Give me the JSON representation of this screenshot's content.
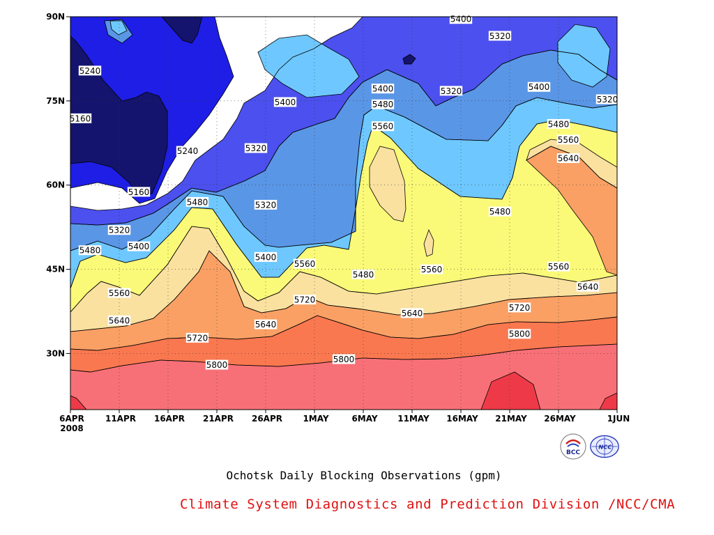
{
  "chart_data": {
    "type": "contour",
    "x_dates": [
      "6APR",
      "11APR",
      "16APR",
      "21APR",
      "26APR",
      "1MAY",
      "6MAY",
      "11MAY",
      "16MAY",
      "21MAY",
      "26MAY",
      "1JUN"
    ],
    "x_year": "2008",
    "y_ticks": [
      "30N",
      "45N",
      "60N",
      "75N",
      "90N"
    ],
    "ylim": [
      20,
      90
    ],
    "levels": [
      5160,
      5240,
      5320,
      5400,
      5480,
      5560,
      5640,
      5720,
      5800
    ],
    "contour_labels": [
      {
        "value": "5240",
        "date": "8APR",
        "lat": 80.4
      },
      {
        "value": "5160",
        "date": "7APR",
        "lat": 71.9
      },
      {
        "value": "5240",
        "date": "18APR",
        "lat": 66.1
      },
      {
        "value": "5160",
        "date": "13APR",
        "lat": 58.8
      },
      {
        "value": "5320",
        "date": "11APR",
        "lat": 52.0
      },
      {
        "value": "5400",
        "date": "13APR",
        "lat": 49.1
      },
      {
        "value": "5480",
        "date": "8APR",
        "lat": 48.4
      },
      {
        "value": "5480",
        "date": "19APR",
        "lat": 57.0
      },
      {
        "value": "5560",
        "date": "11APR",
        "lat": 40.8
      },
      {
        "value": "5640",
        "date": "11APR",
        "lat": 35.9
      },
      {
        "value": "5720",
        "date": "19APR",
        "lat": 32.8
      },
      {
        "value": "5800",
        "date": "21APR",
        "lat": 28.0
      },
      {
        "value": "5320",
        "date": "25APR",
        "lat": 66.6
      },
      {
        "value": "5320",
        "date": "26APR",
        "lat": 56.5
      },
      {
        "value": "5400",
        "date": "28APR",
        "lat": 74.8
      },
      {
        "value": "5400",
        "date": "26APR",
        "lat": 47.2
      },
      {
        "value": "5640",
        "date": "26APR",
        "lat": 35.2
      },
      {
        "value": "5560",
        "date": "30APR",
        "lat": 46.0
      },
      {
        "value": "5720",
        "date": "30APR",
        "lat": 39.6
      },
      {
        "value": "5800",
        "date": "4MAY",
        "lat": 29.0
      },
      {
        "value": "5480",
        "date": "6MAY",
        "lat": 44.1
      },
      {
        "value": "5400",
        "date": "8MAY",
        "lat": 77.2
      },
      {
        "value": "5480",
        "date": "8MAY",
        "lat": 74.4
      },
      {
        "value": "5560",
        "date": "8MAY",
        "lat": 70.5
      },
      {
        "value": "5320",
        "date": "15MAY",
        "lat": 76.8
      },
      {
        "value": "5400",
        "date": "16MAY",
        "lat": 89.6
      },
      {
        "value": "5320",
        "date": "20MAY",
        "lat": 86.6
      },
      {
        "value": "5560",
        "date": "13MAY",
        "lat": 45.0
      },
      {
        "value": "5640",
        "date": "11MAY",
        "lat": 37.2
      },
      {
        "value": "5480",
        "date": "20MAY",
        "lat": 55.3
      },
      {
        "value": "5720",
        "date": "22MAY",
        "lat": 38.2
      },
      {
        "value": "5800",
        "date": "22MAY",
        "lat": 33.5
      },
      {
        "value": "5400",
        "date": "24MAY",
        "lat": 77.5
      },
      {
        "value": "5480",
        "date": "26MAY",
        "lat": 70.9
      },
      {
        "value": "5560",
        "date": "27MAY",
        "lat": 68.1
      },
      {
        "value": "5640",
        "date": "27MAY",
        "lat": 64.8
      },
      {
        "value": "5560",
        "date": "26MAY",
        "lat": 45.5
      },
      {
        "value": "5640",
        "date": "29MAY",
        "lat": 41.9
      },
      {
        "value": "5320",
        "date": "31MAY",
        "lat": 75.3
      }
    ],
    "colors": {
      "lt5160": "#14146e",
      "5160": "#1e1ee6",
      "5240": "#4b50ee",
      "5320": "#5a96e6",
      "5400": "#6ec8ff",
      "5480": "#fafa78",
      "5560": "#fae1a0",
      "5640": "#faa064",
      "5720": "#fa7850",
      "5800": "#f87077",
      "gt5880": "#ee3a48"
    }
  },
  "caption": "Ochotsk Daily Blocking Observations (gpm)",
  "credit": "Climate System Diagnostics and Prediction Division /NCC/CMA",
  "logos": {
    "bcc": "BCC",
    "ncc": "NCC"
  }
}
